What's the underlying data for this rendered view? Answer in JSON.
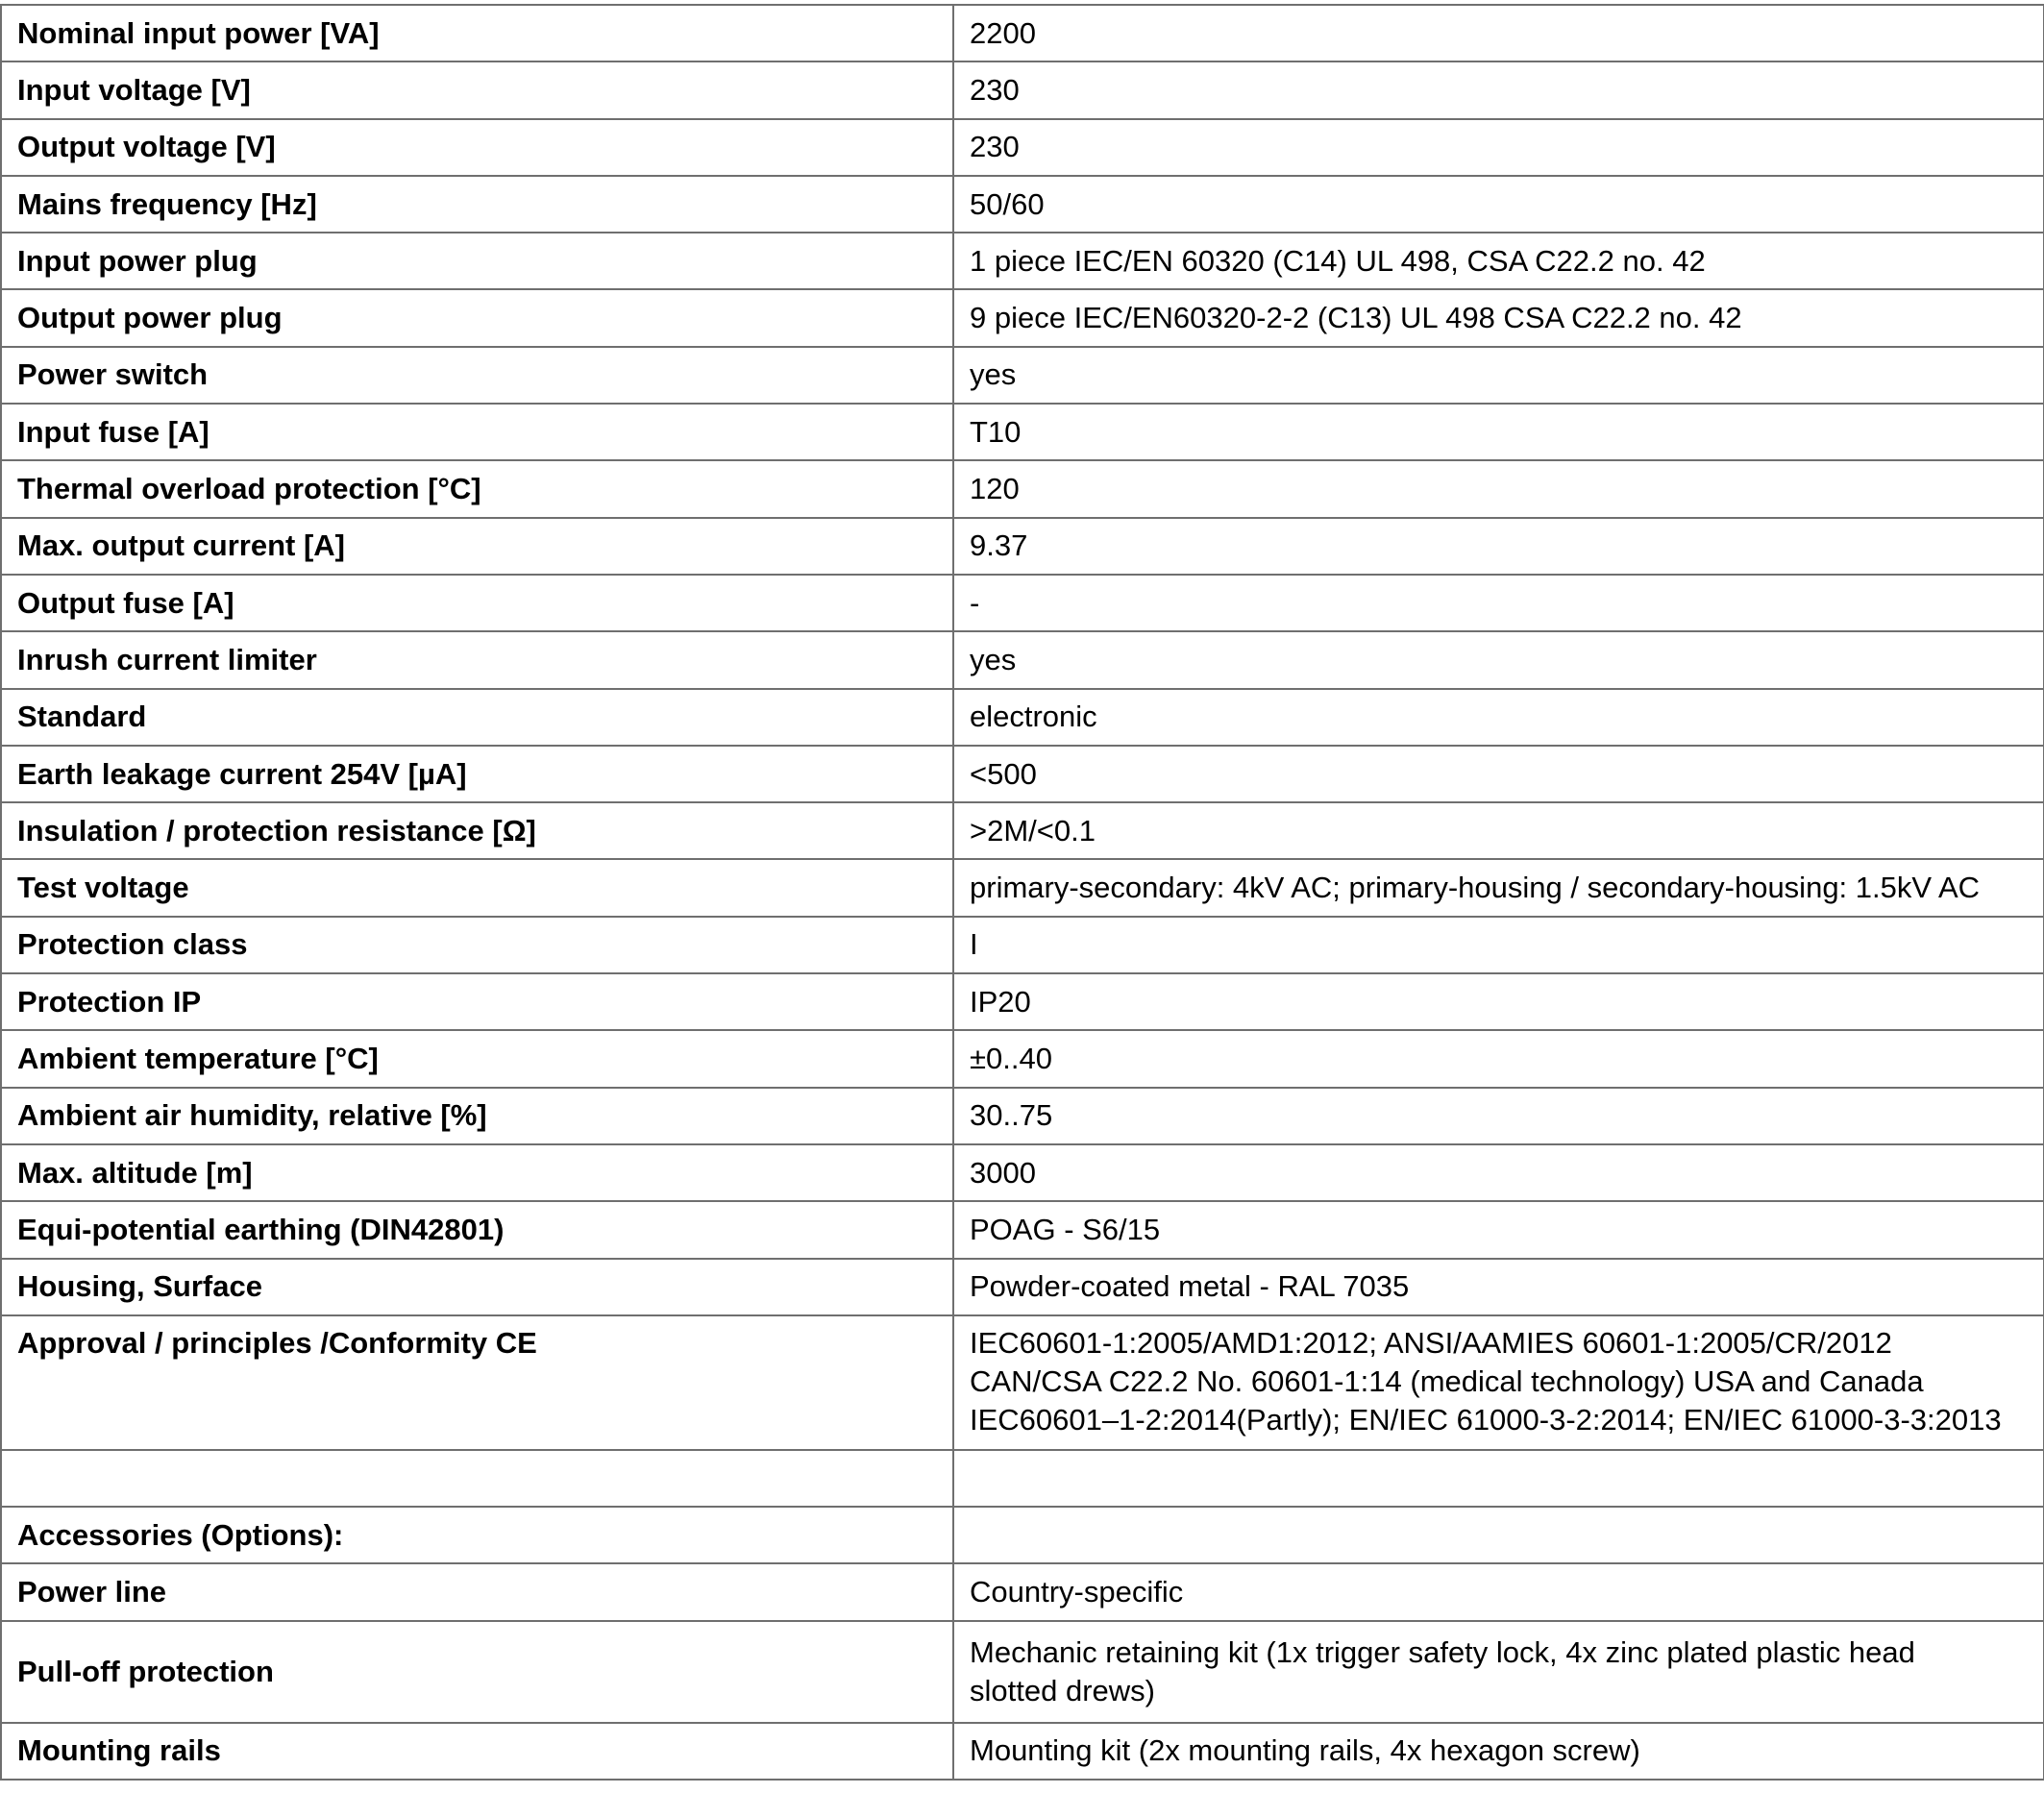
{
  "rows": [
    {
      "label": "Nominal input power [VA]",
      "value": "2200"
    },
    {
      "label": "Input voltage [V]",
      "value": "230"
    },
    {
      "label": "Output voltage [V]",
      "value": "230"
    },
    {
      "label": "Mains frequency [Hz]",
      "value": "50/60"
    },
    {
      "label": "Input power plug",
      "value": "1 piece IEC/EN 60320 (C14) UL 498, CSA C22.2 no. 42"
    },
    {
      "label": "Output power plug",
      "value": "9 piece IEC/EN60320-2-2 (C13) UL 498 CSA C22.2 no. 42"
    },
    {
      "label": "Power switch",
      "value": "yes"
    },
    {
      "label": "Input fuse [A]",
      "value": "T10"
    },
    {
      "label": "Thermal overload protection [°C]",
      "value": "120"
    },
    {
      "label": "Max. output current [A]",
      "value": "9.37"
    },
    {
      "label": "Output fuse [A]",
      "value": "-"
    },
    {
      "label": "Inrush current limiter",
      "value": "yes"
    },
    {
      "label": "Standard",
      "value": "electronic"
    },
    {
      "label": "Earth leakage current 254V [µA]",
      "value": "<500"
    },
    {
      "label": "Insulation / protection resistance [Ω]",
      "value": ">2M/<0.1"
    },
    {
      "label": "Test voltage",
      "value": "primary-secondary: 4kV AC; primary-housing / secondary-housing: 1.5kV AC"
    },
    {
      "label": "Protection class",
      "value": "I"
    },
    {
      "label": "Protection IP",
      "value": "IP20"
    },
    {
      "label": "Ambient temperature [°C]",
      "value": "±0..40"
    },
    {
      "label": "Ambient air humidity, relative [%]",
      "value": "30..75"
    },
    {
      "label": "Max. altitude [m]",
      "value": "3000"
    },
    {
      "label": "Equi-potential earthing (DIN42801)",
      "value": "POAG - S6/15"
    },
    {
      "label": "Housing, Surface",
      "value": "Powder-coated metal - RAL 7035"
    },
    {
      "label": "Approval / principles /Conformity CE",
      "value": "IEC60601-1:2005/AMD1:2012; ANSI/AAMIES 60601-1:2005/CR/2012\nCAN/CSA C22.2 No. 60601-1:14 (medical technology) USA and Canada\nIEC60601–1-2:2014(Partly); EN/IEC 61000-3-2:2014; EN/IEC 61000-3-3:2013"
    },
    {
      "label": "",
      "value": ""
    },
    {
      "label": "Accessories (Options):",
      "value": ""
    },
    {
      "label": "Power line",
      "value": "Country-specific"
    },
    {
      "label": "Pull-off protection",
      "value": "Mechanic retaining kit (1x trigger safety lock, 4x zinc plated plastic head\nslotted drews)"
    },
    {
      "label": "Mounting rails",
      "value": "Mounting kit (2x mounting rails, 4x hexagon screw)"
    }
  ]
}
